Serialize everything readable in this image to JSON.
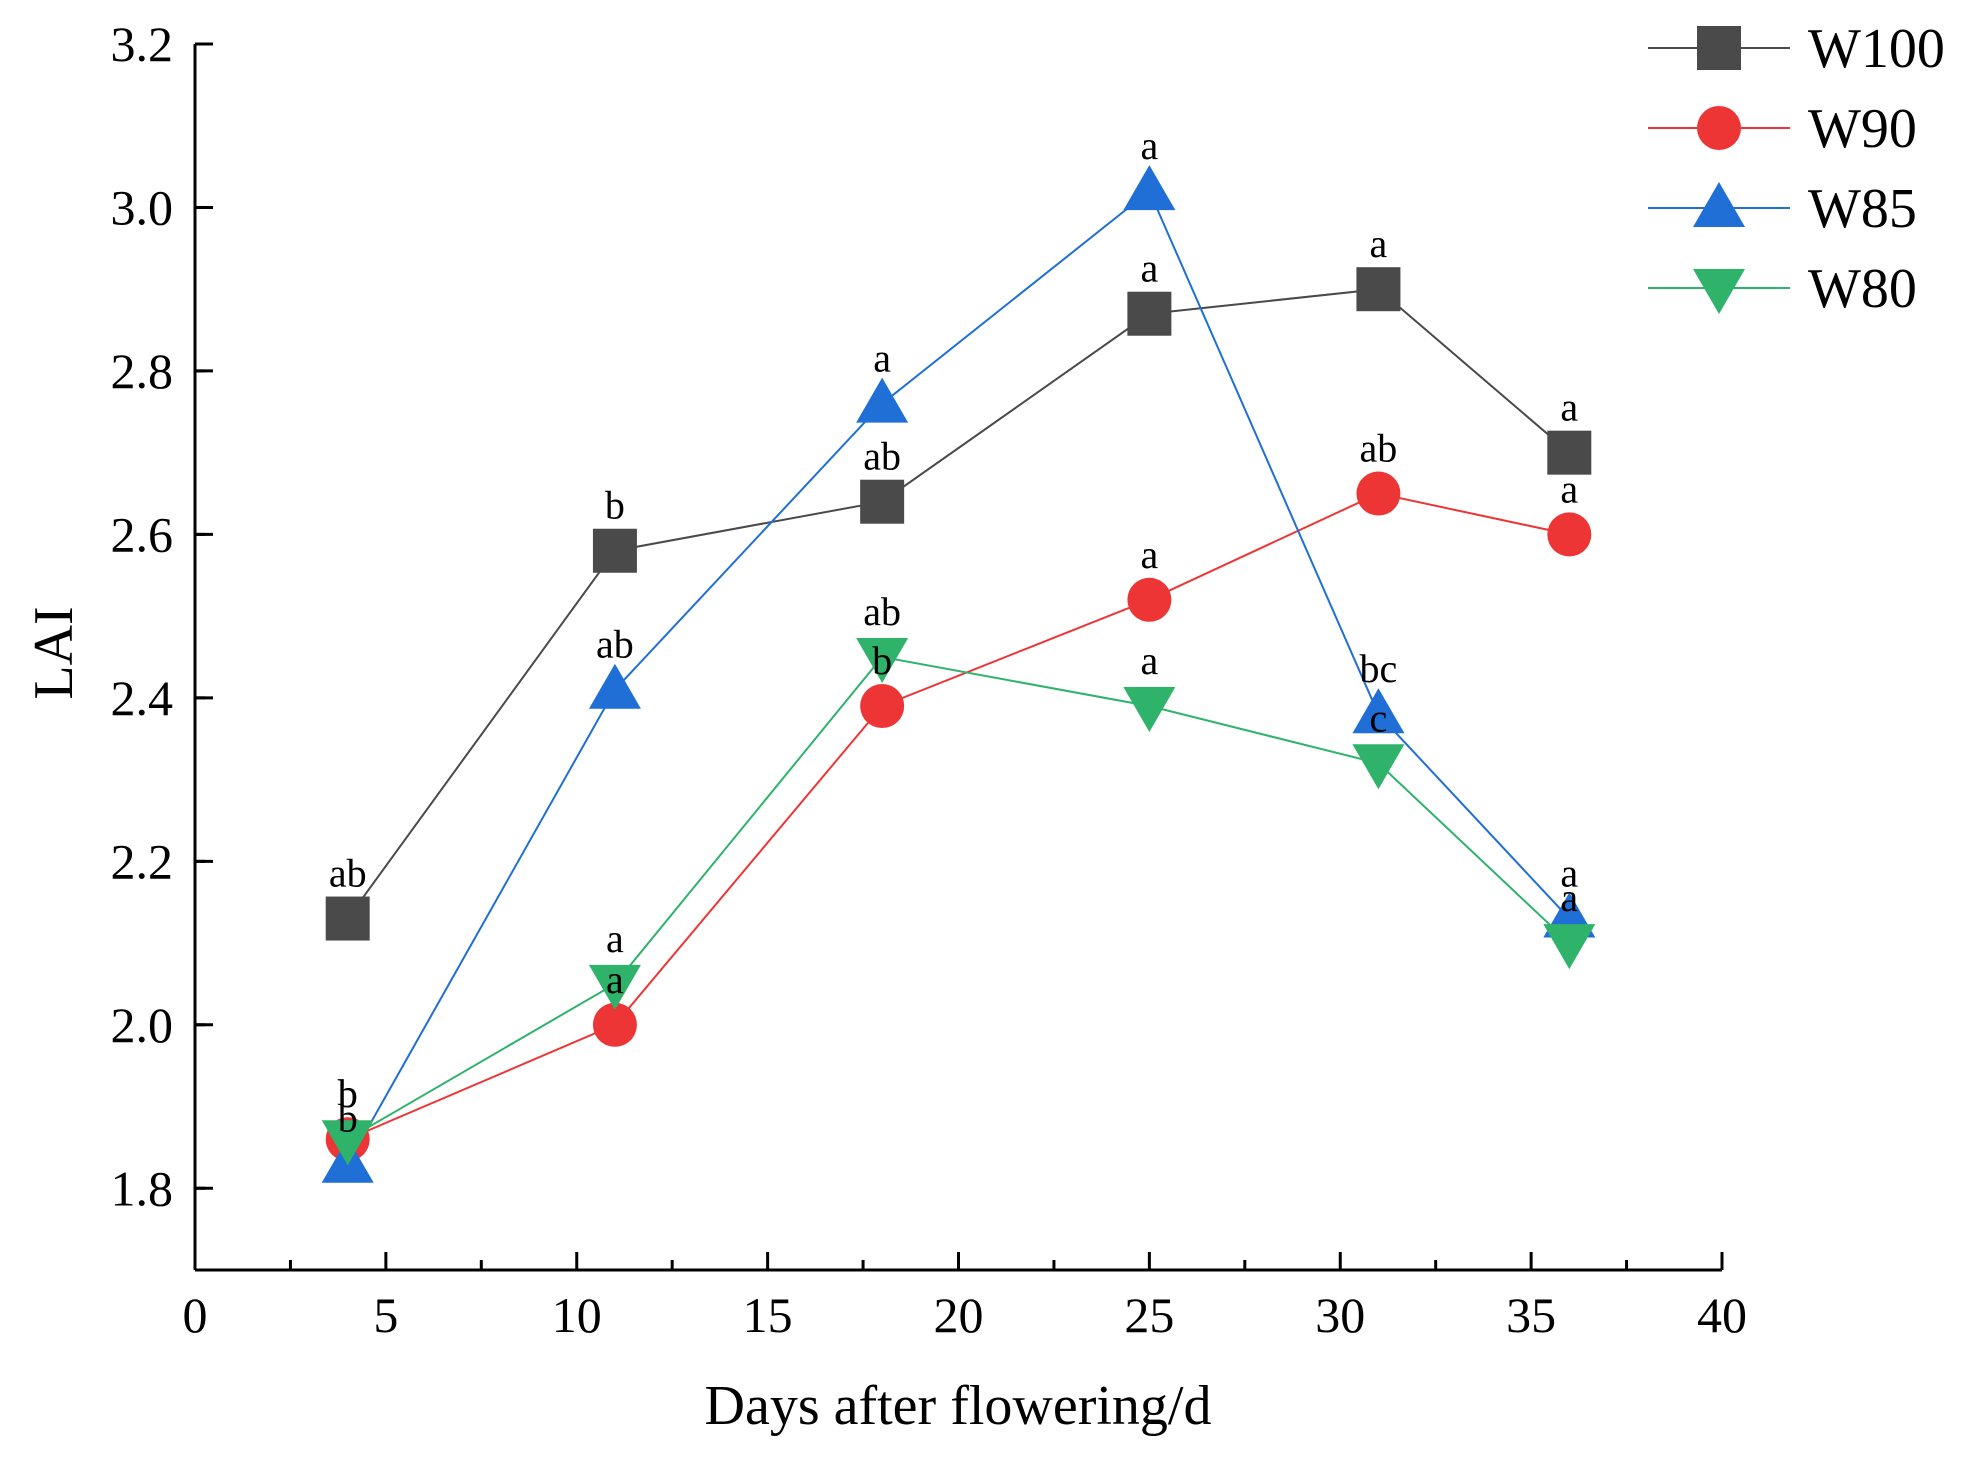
{
  "chart_data": {
    "type": "line",
    "title": "",
    "xlabel": "Days after flowering/d",
    "ylabel": "LAI",
    "xlim": [
      0,
      40
    ],
    "ylim": [
      1.7,
      3.2
    ],
    "xticks": [
      0,
      5,
      10,
      15,
      20,
      25,
      30,
      35,
      40
    ],
    "yticks": [
      1.8,
      2.0,
      2.2,
      2.4,
      2.6,
      2.8,
      3.0,
      3.2
    ],
    "legend_position": "top-right",
    "grid": false,
    "x": [
      4,
      11,
      18,
      25,
      31,
      36
    ],
    "series": [
      {
        "name": "W100",
        "color": "#4a4a4a",
        "marker": "square",
        "values": [
          2.13,
          2.58,
          2.64,
          2.87,
          2.9,
          2.7
        ],
        "labels": [
          "ab",
          "b",
          "ab",
          "a",
          "a",
          "a"
        ]
      },
      {
        "name": "W90",
        "color": "#ee3535",
        "marker": "circle",
        "values": [
          1.86,
          2.0,
          2.39,
          2.52,
          2.65,
          2.6
        ],
        "labels": [
          "b",
          "a",
          "b",
          "a",
          "ab",
          "a"
        ]
      },
      {
        "name": "W85",
        "color": "#1f6fd6",
        "marker": "triangle-up",
        "values": [
          1.83,
          2.41,
          2.76,
          3.02,
          2.38,
          2.13
        ],
        "labels": [
          "b",
          "ab",
          "a",
          "a",
          "bc",
          "a"
        ]
      },
      {
        "name": "W80",
        "color": "#2fb36b",
        "marker": "triangle-down",
        "values": [
          1.86,
          2.05,
          2.45,
          2.39,
          2.32,
          2.1
        ],
        "labels": [
          "b",
          "a",
          "ab",
          "a",
          "c",
          "a"
        ]
      }
    ]
  }
}
